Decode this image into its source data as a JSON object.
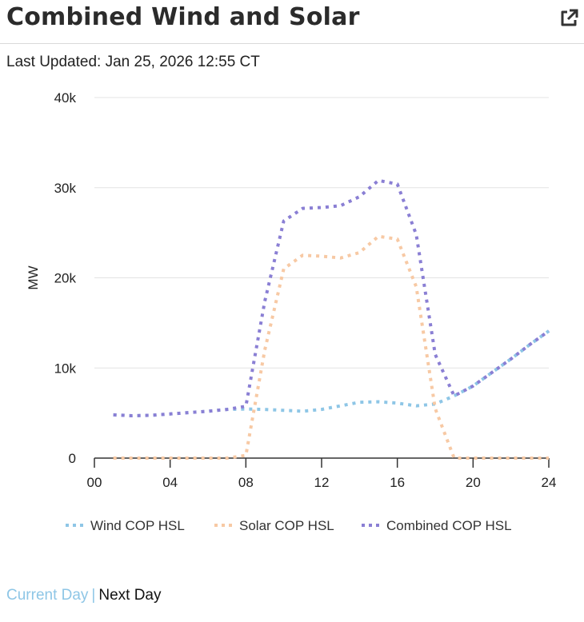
{
  "header": {
    "title": "Combined Wind and Solar"
  },
  "icons": {
    "external": "external-link-icon"
  },
  "updated": {
    "text": "Last Updated: Jan 25, 2026 12:55 CT"
  },
  "footer": {
    "current_day": "Current Day",
    "separator": "|",
    "next_day": "Next Day"
  },
  "chart_data": {
    "type": "line",
    "title": "",
    "xlabel": "",
    "ylabel": "MW",
    "xlim": [
      0,
      24
    ],
    "ylim": [
      0,
      40000
    ],
    "x_ticks": [
      0,
      4,
      8,
      12,
      16,
      20,
      24
    ],
    "x_tick_labels": [
      "00",
      "04",
      "08",
      "12",
      "16",
      "20",
      "24"
    ],
    "y_ticks": [
      0,
      10000,
      20000,
      30000,
      40000
    ],
    "y_tick_labels": [
      "0",
      "10k",
      "20k",
      "30k",
      "40k"
    ],
    "grid": true,
    "legend_position": "bottom",
    "series": [
      {
        "name": "Wind COP HSL",
        "color": "#8ec6e6",
        "x": [
          1,
          2,
          3,
          4,
          5,
          6,
          7,
          8,
          9,
          10,
          11,
          12,
          13,
          14,
          15,
          16,
          17,
          18,
          19,
          20,
          21,
          22,
          23,
          24
        ],
        "values": [
          4800,
          4700,
          4750,
          4900,
          5050,
          5200,
          5400,
          5450,
          5400,
          5300,
          5200,
          5400,
          5800,
          6200,
          6250,
          6100,
          5800,
          6000,
          6900,
          8000,
          9500,
          11000,
          12600,
          14100
        ]
      },
      {
        "name": "Solar COP HSL",
        "color": "#f7c9a4",
        "x": [
          1,
          2,
          3,
          4,
          5,
          6,
          7,
          8,
          9,
          10,
          11,
          12,
          13,
          14,
          15,
          16,
          17,
          18,
          19,
          20,
          21,
          22,
          23,
          24
        ],
        "values": [
          0,
          0,
          0,
          0,
          0,
          0,
          0,
          300,
          12000,
          21000,
          22500,
          22400,
          22200,
          22800,
          24600,
          24300,
          19000,
          5500,
          0,
          0,
          0,
          0,
          0,
          0
        ]
      },
      {
        "name": "Combined COP HSL",
        "color": "#8a7fd4",
        "x": [
          1,
          2,
          3,
          4,
          5,
          6,
          7,
          8,
          9,
          10,
          11,
          12,
          13,
          14,
          15,
          16,
          17,
          18,
          19,
          20,
          21,
          22,
          23,
          24
        ],
        "values": [
          4800,
          4700,
          4750,
          4900,
          5050,
          5200,
          5400,
          5750,
          17400,
          26300,
          27700,
          27800,
          28000,
          29000,
          30800,
          30400,
          24800,
          11500,
          6900,
          8000,
          9500,
          11000,
          12600,
          14100
        ]
      }
    ]
  }
}
